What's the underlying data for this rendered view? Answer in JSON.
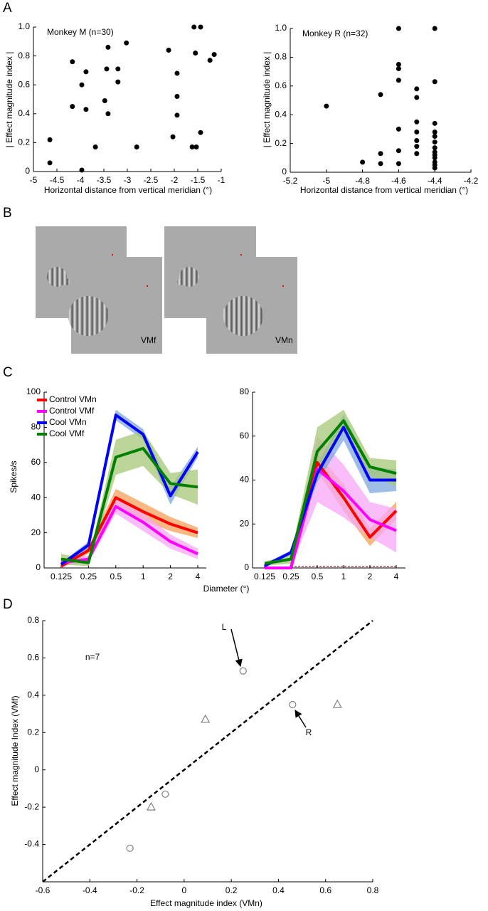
{
  "chart_data": [
    {
      "type": "scatter",
      "panel": "A",
      "title": "Monkey M (n=30)",
      "xlabel": "Horizontal distance from vertical meridian (°)",
      "ylabel": "| Effect magnitude index |",
      "color": "#000000",
      "x": [
        -4.65,
        -4.65,
        -4.17,
        -4.17,
        -3.97,
        -3.97,
        -3.88,
        -3.88,
        -3.68,
        -3.41,
        -3.44,
        -3.48,
        -3.41,
        -3.2,
        -3.2,
        -3.02,
        -2.8,
        -2.12,
        -2.03,
        -1.94,
        -1.94,
        -1.94,
        -1.58,
        -1.55,
        -1.62,
        -1.53,
        -1.44,
        -1.44,
        -1.24,
        -1.15
      ],
      "y": [
        0.22,
        0.06,
        0.76,
        0.45,
        0.6,
        0.01,
        0.69,
        0.43,
        0.17,
        0.86,
        0.71,
        0.49,
        0.4,
        0.71,
        0.62,
        0.89,
        0.17,
        0.84,
        0.24,
        0.68,
        0.52,
        0.39,
        1,
        0.82,
        0.17,
        0.17,
        1,
        0.27,
        0.77,
        0.81
      ],
      "xlim": [
        -5,
        -1
      ],
      "xticks": [
        -5,
        -4.5,
        -4,
        -3.5,
        -3,
        -2.5,
        -2,
        -1.5,
        -1
      ],
      "ylim": [
        0,
        1
      ],
      "yticks": [
        0,
        0.2,
        0.4,
        0.6,
        0.8,
        {
          "value": 1,
          "label": "1.0"
        }
      ]
    },
    {
      "type": "scatter",
      "title": "Monkey R (n=32)",
      "xlabel": "Horizontal distance from vertical meridian (°)",
      "ylabel": "| Effect magnitude index |",
      "color": "#000000",
      "x": [
        -5,
        -4.8,
        -4.7,
        -4.7,
        -4.7,
        -4.6,
        -4.6,
        -4.6,
        -4.6,
        -4.6,
        -4.6,
        -4.6,
        -4.5,
        -4.5,
        -4.5,
        -4.5,
        -4.5,
        -4.5,
        -4.5,
        -4.4,
        -4.4,
        -4.4,
        -4.4,
        -4.4,
        -4.4,
        -4.4,
        -4.4,
        -4.4,
        -4.4,
        -4.4,
        -4.4,
        -4.4
      ],
      "y": [
        0.46,
        0.07,
        0.54,
        0.13,
        0.06,
        1,
        0.75,
        0.72,
        0.64,
        0.3,
        0.15,
        0.06,
        0.58,
        0.52,
        0.35,
        0.28,
        0.22,
        0.18,
        0.13,
        1,
        0.63,
        0.34,
        0.28,
        0.25,
        0.21,
        0.17,
        0.14,
        0.12,
        0.1,
        0.07,
        0.05,
        0.03
      ],
      "xlim": [
        -5.2,
        -4.2
      ],
      "xticks": [
        -5.2,
        -5,
        -4.8,
        -4.6,
        -4.4,
        -4.2
      ],
      "ylim": [
        0,
        1
      ],
      "yticks": [
        0,
        0.2,
        0.4,
        0.6,
        0.8,
        {
          "value": 1,
          "label": "1.0"
        }
      ]
    },
    {
      "type": "line",
      "panel": "C",
      "ylabel": "Spikes/s",
      "xlabel": "Diameter (°)",
      "legend": "upper left",
      "categories": [
        "0.125",
        "0.25",
        "0.5",
        "1",
        "2",
        "4"
      ],
      "series": [
        {
          "name": "Control VMn",
          "color": "#ff0000",
          "band_color": "#f5a05a",
          "values": [
            1,
            10,
            40,
            32,
            25,
            20
          ],
          "errors": [
            1,
            2,
            5,
            5,
            4,
            3
          ]
        },
        {
          "name": "Control VMf",
          "color": "#ff00ff",
          "band_color": "#f7a8f7",
          "values": [
            3,
            5,
            35,
            26,
            15,
            8
          ],
          "errors": [
            2,
            2,
            4,
            5,
            4,
            3
          ]
        },
        {
          "name": "Cool VMn",
          "color": "#0000ff",
          "band_color": "#7fa8dc",
          "values": [
            2,
            13,
            87,
            76,
            41,
            66
          ],
          "errors": [
            1,
            2,
            3,
            3,
            5,
            3
          ]
        },
        {
          "name": "Cool VMf",
          "color": "#008000",
          "band_color": "#a6c878",
          "values": [
            5,
            3,
            63,
            68,
            48,
            46
          ],
          "errors": [
            3,
            2,
            10,
            10,
            6,
            10
          ]
        }
      ],
      "ylim": [
        0,
        100
      ],
      "yticks": [
        0,
        20,
        40,
        60,
        80,
        100
      ]
    },
    {
      "type": "line",
      "categories": [
        "0.125",
        "0.25",
        "0.5",
        "1",
        "2",
        "4"
      ],
      "baseline": 0.7,
      "baseline_color": "#800000",
      "series": [
        {
          "name": "Control VMn",
          "color": "#ff0000",
          "band_color": "#f5a05a",
          "values": [
            0,
            0,
            48,
            32,
            14,
            26
          ],
          "errors": [
            0,
            0,
            4,
            6,
            4,
            4
          ]
        },
        {
          "name": "Control VMf",
          "color": "#ff00ff",
          "band_color": "#f7a8f7",
          "values": [
            0,
            0,
            45,
            35,
            22,
            17
          ],
          "errors": [
            0,
            0,
            15,
            12,
            8,
            10
          ]
        },
        {
          "name": "Cool VMn",
          "color": "#0000ff",
          "band_color": "#7fa8dc",
          "values": [
            1,
            7,
            43,
            64,
            40,
            40
          ],
          "errors": [
            1,
            1,
            4,
            6,
            6,
            5
          ]
        },
        {
          "name": "Cool VMf",
          "color": "#008000",
          "band_color": "#a6c878",
          "values": [
            2,
            4,
            53,
            67,
            46,
            43
          ],
          "errors": [
            1,
            2,
            11,
            5,
            4,
            6
          ]
        }
      ],
      "ylim": [
        0,
        80
      ],
      "yticks": [
        0,
        20,
        40,
        60,
        80
      ]
    },
    {
      "type": "scatter",
      "panel": "D",
      "xlabel": "Effect magnitude index (VMn)",
      "ylabel": "Effect magnitude Index (VMf)",
      "annotations": [
        "n=7",
        "L",
        "R"
      ],
      "series": [
        {
          "marker": "circle",
          "color": "#808080",
          "x": [
            -0.23,
            -0.08,
            0.25,
            0.46
          ],
          "y": [
            -0.42,
            -0.13,
            0.53,
            0.35
          ]
        },
        {
          "marker": "triangle",
          "color": "#808080",
          "x": [
            -0.14,
            0.09,
            0.65
          ],
          "y": [
            -0.2,
            0.27,
            0.35
          ]
        }
      ],
      "reference_line": {
        "x": [
          -0.6,
          0.8
        ],
        "y": [
          -0.6,
          0.8
        ]
      },
      "xlim": [
        -0.6,
        0.8
      ],
      "xticks": [
        -0.6,
        -0.4,
        -0.2,
        0,
        0.2,
        0.4,
        0.6,
        0.8
      ],
      "ylim": [
        -0.6,
        0.8
      ],
      "yticks": [
        -0.4,
        -0.2,
        0,
        0.2,
        0.4,
        0.6,
        0.8
      ]
    }
  ],
  "panel_b": {
    "label": "B",
    "stimuli": [
      "VMf",
      "VMn"
    ]
  }
}
